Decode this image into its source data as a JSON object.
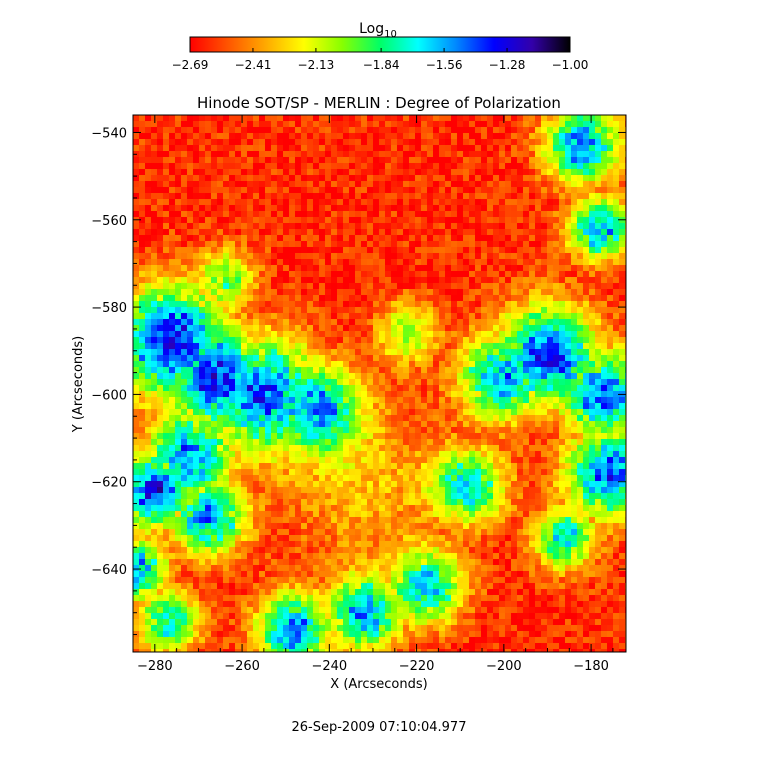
{
  "chart_data": {
    "type": "heatmap",
    "title": "Hinode SOT/SP - MERLIN : Degree of Polarization",
    "xlabel": "X (Arcseconds)",
    "ylabel": "Y (Arcseconds)",
    "timestamp": "26-Sep-2009 07:10:04.977",
    "xlim": [
      -285,
      -172
    ],
    "ylim": [
      -659,
      -536
    ],
    "x_ticks": [
      -280,
      -260,
      -240,
      -220,
      -200,
      -180
    ],
    "y_ticks": [
      -540,
      -560,
      -580,
      -600,
      -620,
      -640
    ],
    "x_tick_labels": [
      "−280",
      "−260",
      "−240",
      "−220",
      "−200",
      "−180"
    ],
    "y_tick_labels": [
      "−540",
      "−560",
      "−580",
      "−600",
      "−620",
      "−640"
    ],
    "colorbar": {
      "label_base": "Log",
      "label_sub": "10",
      "range": [
        -2.69,
        -1.0
      ],
      "ticks": [
        -2.69,
        -2.41,
        -2.13,
        -1.84,
        -1.56,
        -1.28,
        -1.0
      ],
      "tick_labels": [
        "−2.69",
        "−2.41",
        "−2.13",
        "−1.84",
        "−1.56",
        "−1.28",
        "−1.00"
      ],
      "colormap": [
        "#ff0000",
        "#ff5500",
        "#ffaa00",
        "#ffff00",
        "#88ff00",
        "#00ff66",
        "#00ffff",
        "#0088ff",
        "#0000ff",
        "#3300aa",
        "#000000"
      ]
    },
    "high_polarization_features": [
      {
        "x": -276,
        "y": -588,
        "spread": 9,
        "strength": 1.0
      },
      {
        "x": -266,
        "y": -596,
        "spread": 8,
        "strength": 1.0
      },
      {
        "x": -255,
        "y": -600,
        "spread": 9,
        "strength": 0.9
      },
      {
        "x": -243,
        "y": -603,
        "spread": 7,
        "strength": 0.8
      },
      {
        "x": -280,
        "y": -622,
        "spread": 6,
        "strength": 0.95
      },
      {
        "x": -272,
        "y": -614,
        "spread": 7,
        "strength": 0.85
      },
      {
        "x": -268,
        "y": -628,
        "spread": 6,
        "strength": 0.85
      },
      {
        "x": -284,
        "y": -640,
        "spread": 5,
        "strength": 0.8
      },
      {
        "x": -277,
        "y": -652,
        "spread": 5,
        "strength": 0.7
      },
      {
        "x": -248,
        "y": -654,
        "spread": 6,
        "strength": 0.85
      },
      {
        "x": -232,
        "y": -650,
        "spread": 6,
        "strength": 0.8
      },
      {
        "x": -218,
        "y": -644,
        "spread": 6,
        "strength": 0.75
      },
      {
        "x": -208,
        "y": -621,
        "spread": 6,
        "strength": 0.7
      },
      {
        "x": -200,
        "y": -596,
        "spread": 7,
        "strength": 0.8
      },
      {
        "x": -190,
        "y": -591,
        "spread": 8,
        "strength": 0.95
      },
      {
        "x": -177,
        "y": -600,
        "spread": 7,
        "strength": 0.9
      },
      {
        "x": -176,
        "y": -618,
        "spread": 7,
        "strength": 0.9
      },
      {
        "x": -182,
        "y": -543,
        "spread": 6,
        "strength": 0.85
      },
      {
        "x": -178,
        "y": -562,
        "spread": 5,
        "strength": 0.8
      },
      {
        "x": -186,
        "y": -633,
        "spread": 5,
        "strength": 0.7
      },
      {
        "x": -264,
        "y": -574,
        "spread": 5,
        "strength": 0.55
      },
      {
        "x": -222,
        "y": -586,
        "spread": 5,
        "strength": 0.45
      }
    ]
  }
}
